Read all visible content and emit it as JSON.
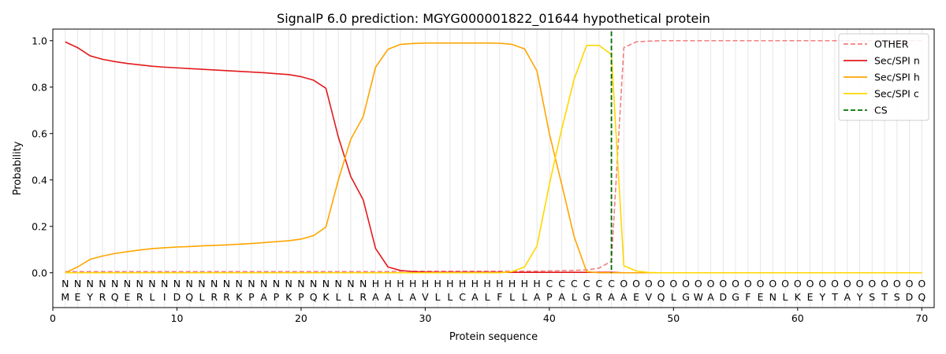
{
  "chart_data": {
    "type": "line",
    "title": "SignalP 6.0 prediction: MGYG000001822_01644 hypothetical protein",
    "xlabel": "Protein sequence",
    "ylabel": "Probability",
    "xlim": [
      0,
      71
    ],
    "ylim": [
      -0.15,
      1.05
    ],
    "xticks": [
      0,
      10,
      20,
      30,
      40,
      50,
      60,
      70
    ],
    "yticks": [
      0.0,
      0.2,
      0.4,
      0.6,
      0.8,
      1.0
    ],
    "legend_position": "top-right",
    "grid_x": true,
    "residues": [
      "M",
      "E",
      "Y",
      "R",
      "Q",
      "E",
      "R",
      "L",
      "I",
      "D",
      "Q",
      "L",
      "R",
      "R",
      "K",
      "P",
      "A",
      "P",
      "K",
      "P",
      "Q",
      "K",
      "L",
      "L",
      "R",
      "A",
      "A",
      "L",
      "A",
      "V",
      "L",
      "L",
      "C",
      "A",
      "L",
      "F",
      "L",
      "L",
      "A",
      "P",
      "A",
      "L",
      "G",
      "R",
      "A",
      "A",
      "E",
      "V",
      "Q",
      "L",
      "G",
      "W",
      "A",
      "D",
      "G",
      "F",
      "E",
      "N",
      "L",
      "K",
      "E",
      "Y",
      "T",
      "A",
      "Y",
      "S",
      "T",
      "S",
      "D",
      "Q"
    ],
    "labels": [
      "N",
      "N",
      "N",
      "N",
      "N",
      "N",
      "N",
      "N",
      "N",
      "N",
      "N",
      "N",
      "N",
      "N",
      "N",
      "N",
      "N",
      "N",
      "N",
      "N",
      "N",
      "N",
      "N",
      "N",
      "N",
      "H",
      "H",
      "H",
      "H",
      "H",
      "H",
      "H",
      "H",
      "H",
      "H",
      "H",
      "H",
      "H",
      "H",
      "C",
      "C",
      "C",
      "C",
      "C",
      "C",
      "O",
      "O",
      "O",
      "O",
      "O",
      "O",
      "O",
      "O",
      "O",
      "O",
      "O",
      "O",
      "O",
      "O",
      "O",
      "O",
      "O",
      "O",
      "O",
      "O",
      "O",
      "O",
      "O",
      "O",
      "O"
    ],
    "label_colors": {
      "N": "#ff0000",
      "H": "#ffa500",
      "C": "#ffd700",
      "O": "#808080"
    },
    "series": [
      {
        "name": "OTHER",
        "color": "#f08080",
        "dash": "dashed",
        "values": [
          0.005,
          0.005,
          0.005,
          0.005,
          0.005,
          0.005,
          0.005,
          0.005,
          0.005,
          0.005,
          0.005,
          0.005,
          0.005,
          0.005,
          0.005,
          0.005,
          0.005,
          0.005,
          0.005,
          0.005,
          0.005,
          0.005,
          0.005,
          0.005,
          0.005,
          0.005,
          0.005,
          0.007,
          0.007,
          0.007,
          0.007,
          0.007,
          0.007,
          0.007,
          0.007,
          0.007,
          0.007,
          0.007,
          0.007,
          0.008,
          0.009,
          0.01,
          0.012,
          0.02,
          0.05,
          0.97,
          0.995,
          0.998,
          1.0,
          1.0,
          1.0,
          1.0,
          1.0,
          1.0,
          1.0,
          1.0,
          1.0,
          1.0,
          1.0,
          1.0,
          1.0,
          1.0,
          1.0,
          1.0,
          1.0,
          1.0,
          1.0,
          1.0,
          1.0,
          1.0
        ]
      },
      {
        "name": "Sec/SPI n",
        "color": "#e31a1c",
        "dash": "solid",
        "values": [
          0.995,
          0.97,
          0.935,
          0.92,
          0.91,
          0.902,
          0.896,
          0.89,
          0.886,
          0.883,
          0.88,
          0.877,
          0.874,
          0.871,
          0.868,
          0.865,
          0.862,
          0.858,
          0.854,
          0.845,
          0.83,
          0.795,
          0.585,
          0.415,
          0.315,
          0.105,
          0.025,
          0.01,
          0.005,
          0.003,
          0.002,
          0.002,
          0.002,
          0.002,
          0.002,
          0.002,
          0.002,
          0.002,
          0.002,
          0.002,
          0.002,
          0.002,
          0.002,
          0.002,
          0.002,
          0.0,
          0.0,
          0.0,
          0.0,
          0.0,
          0.0,
          0.0,
          0.0,
          0.0,
          0.0,
          0.0,
          0.0,
          0.0,
          0.0,
          0.0,
          0.0,
          0.0,
          0.0,
          0.0,
          0.0,
          0.0,
          0.0,
          0.0,
          0.0,
          0.0
        ]
      },
      {
        "name": "Sec/SPI h",
        "color": "#ffa500",
        "dash": "solid",
        "values": [
          0.0,
          0.025,
          0.058,
          0.072,
          0.083,
          0.091,
          0.098,
          0.104,
          0.108,
          0.111,
          0.113,
          0.116,
          0.118,
          0.12,
          0.123,
          0.126,
          0.13,
          0.134,
          0.138,
          0.145,
          0.16,
          0.197,
          0.4,
          0.575,
          0.672,
          0.886,
          0.963,
          0.984,
          0.988,
          0.99,
          0.99,
          0.99,
          0.99,
          0.99,
          0.99,
          0.989,
          0.984,
          0.965,
          0.87,
          0.6,
          0.38,
          0.155,
          0.005,
          0.0,
          0.0,
          0.0,
          0.0,
          0.0,
          0.0,
          0.0,
          0.0,
          0.0,
          0.0,
          0.0,
          0.0,
          0.0,
          0.0,
          0.0,
          0.0,
          0.0,
          0.0,
          0.0,
          0.0,
          0.0,
          0.0,
          0.0,
          0.0,
          0.0,
          0.0,
          0.0
        ]
      },
      {
        "name": "Sec/SPI c",
        "color": "#ffd700",
        "dash": "solid",
        "values": [
          0.0,
          0.0,
          0.0,
          0.0,
          0.0,
          0.0,
          0.0,
          0.0,
          0.0,
          0.0,
          0.0,
          0.0,
          0.0,
          0.0,
          0.0,
          0.0,
          0.0,
          0.0,
          0.0,
          0.0,
          0.0,
          0.0,
          0.0,
          0.0,
          0.0,
          0.0,
          0.0,
          0.0,
          0.0,
          0.0,
          0.0,
          0.0,
          0.0,
          0.0,
          0.0,
          0.0,
          0.005,
          0.025,
          0.115,
          0.38,
          0.62,
          0.835,
          0.98,
          0.98,
          0.94,
          0.03,
          0.008,
          0.001,
          0.0,
          0.0,
          0.0,
          0.0,
          0.0,
          0.0,
          0.0,
          0.0,
          0.0,
          0.0,
          0.0,
          0.0,
          0.0,
          0.0,
          0.0,
          0.0,
          0.0,
          0.0,
          0.0,
          0.0,
          0.0,
          0.0
        ]
      }
    ],
    "cleavage_site": {
      "name": "CS",
      "x": 45,
      "color": "#007000",
      "dash": "dashed"
    }
  }
}
